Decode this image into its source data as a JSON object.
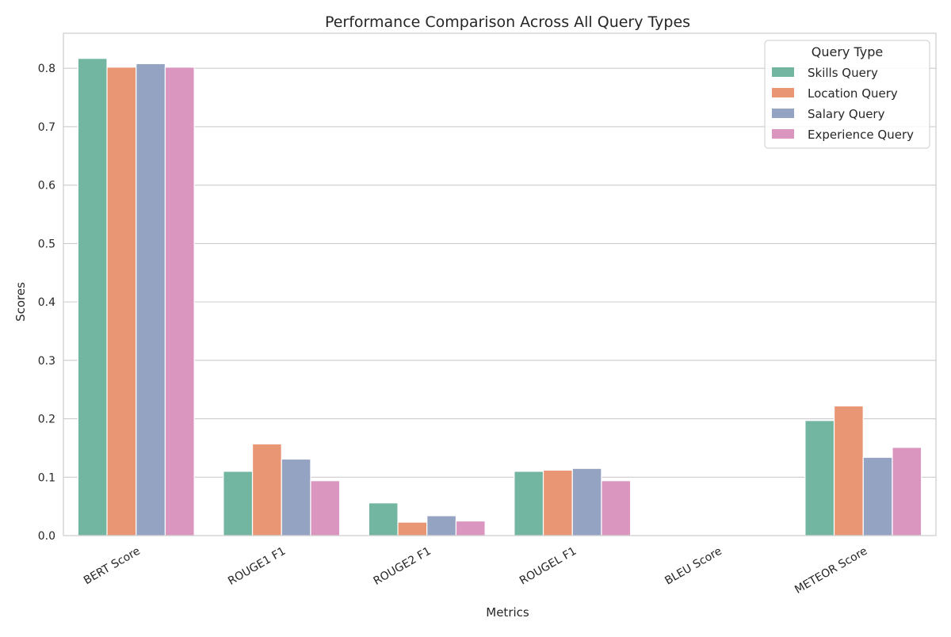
{
  "chart_data": {
    "type": "bar",
    "title": "Performance Comparison Across All Query Types",
    "xlabel": "Metrics",
    "ylabel": "Scores",
    "categories": [
      "BERT Score",
      "ROUGE1 F1",
      "ROUGE2 F1",
      "ROUGEL F1",
      "BLEU Score",
      "METEOR Score"
    ],
    "yticks": [
      "0.0",
      "0.1",
      "0.2",
      "0.3",
      "0.4",
      "0.5",
      "0.6",
      "0.7",
      "0.8"
    ],
    "ylim": [
      0,
      0.86
    ],
    "grid": true,
    "legend": {
      "title": "Query Type",
      "placement": "top-right"
    },
    "series": [
      {
        "name": "Skills Query",
        "color": "#72b6a1",
        "values": [
          0.817,
          0.11,
          0.056,
          0.11,
          0.0,
          0.197
        ]
      },
      {
        "name": "Location Query",
        "color": "#e99675",
        "values": [
          0.802,
          0.157,
          0.023,
          0.112,
          0.0,
          0.222
        ]
      },
      {
        "name": "Salary Query",
        "color": "#95a3c3",
        "values": [
          0.808,
          0.131,
          0.034,
          0.115,
          0.0,
          0.134
        ]
      },
      {
        "name": "Experience Query",
        "color": "#db96c0",
        "values": [
          0.802,
          0.094,
          0.025,
          0.094,
          0.0,
          0.151
        ]
      }
    ]
  }
}
